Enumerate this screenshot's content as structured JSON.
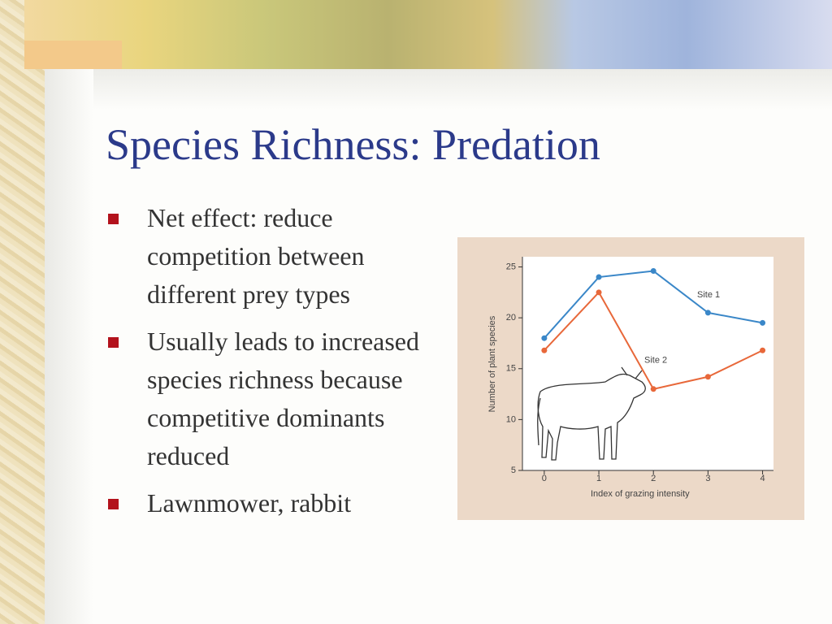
{
  "title": "Species Richness: Predation",
  "bullets": [
    "Net effect: reduce competition between different prey types",
    "Usually leads to increased species richness because competitive dominants reduced",
    "Lawnmower, rabbit"
  ],
  "chart_data": {
    "type": "line",
    "x": [
      0,
      1,
      2,
      3,
      4
    ],
    "xlim": [
      -0.4,
      4.2
    ],
    "xticks": [
      0,
      1,
      2,
      3,
      4
    ],
    "ylim": [
      5,
      26
    ],
    "yticks": [
      5,
      10,
      15,
      20,
      25
    ],
    "x_label": "Index of grazing intensity",
    "y_label": "Number of plant species",
    "series": [
      {
        "name": "Site 1",
        "color": "#3a87c8",
        "values": [
          18,
          24,
          24.6,
          20.5,
          19.5
        ]
      },
      {
        "name": "Site 2",
        "color": "#e8683a",
        "values": [
          16.8,
          22.5,
          13,
          14.2,
          16.8
        ]
      }
    ]
  }
}
